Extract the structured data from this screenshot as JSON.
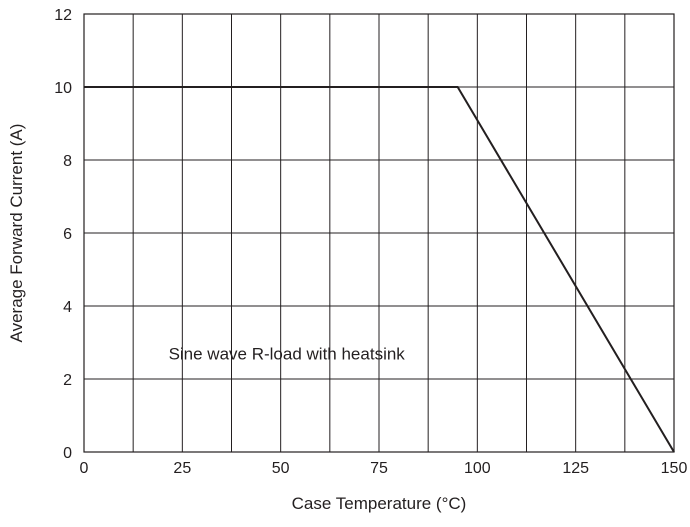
{
  "chart_data": {
    "type": "line",
    "title": "",
    "xlabel": "Case Temperature (°C)",
    "ylabel": "Average Forward Current (A)",
    "xlim": [
      0,
      150
    ],
    "ylim": [
      0,
      12
    ],
    "x_ticks": [
      0,
      25,
      50,
      75,
      100,
      125,
      150
    ],
    "y_ticks": [
      0,
      2,
      4,
      6,
      8,
      10,
      12
    ],
    "x_grid_step": 12.5,
    "y_grid_step": 2,
    "grid": true,
    "annotation": "Sine wave R-load with heatsink",
    "series": [
      {
        "x": [
          0,
          95,
          150
        ],
        "y": [
          10,
          10,
          0
        ]
      }
    ],
    "colors": {
      "line": "#231f20",
      "grid": "#231f20",
      "text": "#231f20"
    }
  }
}
